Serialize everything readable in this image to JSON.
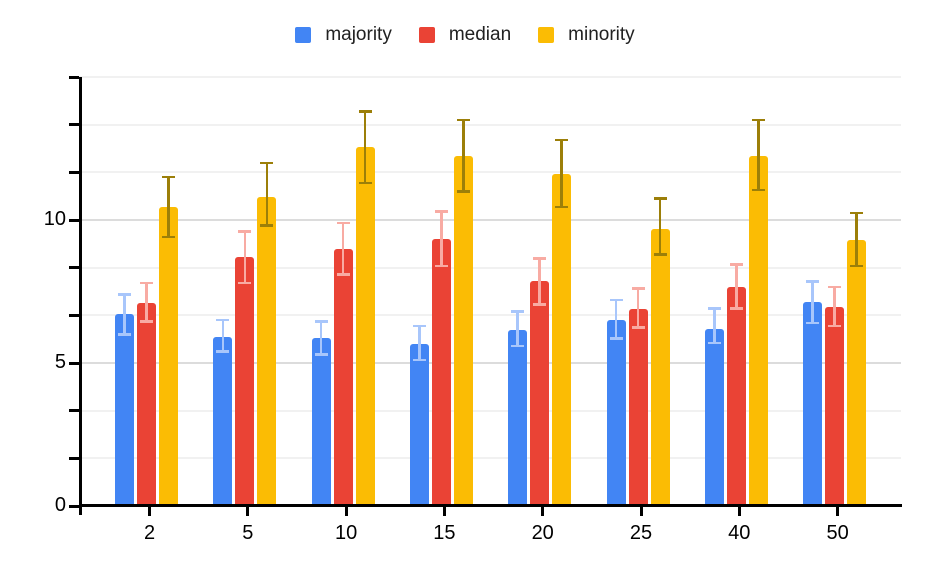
{
  "chart_data": {
    "type": "bar",
    "title": "",
    "xlabel": "",
    "ylabel": "",
    "categories": [
      "2",
      "5",
      "10",
      "15",
      "20",
      "25",
      "40",
      "50"
    ],
    "series": [
      {
        "name": "majority",
        "color": "#4285F4",
        "error_color": "#A8C6FB",
        "values": [
          6.7,
          5.9,
          5.88,
          5.67,
          6.15,
          6.5,
          6.2,
          7.15
        ],
        "error_low": [
          6.0,
          5.4,
          5.3,
          5.1,
          5.6,
          5.85,
          5.7,
          6.4
        ],
        "error_high": [
          7.4,
          6.5,
          6.45,
          6.3,
          6.8,
          7.2,
          6.9,
          7.85
        ]
      },
      {
        "name": "median",
        "color": "#EA4335",
        "error_color": "#F8ABA3",
        "values": [
          7.1,
          8.7,
          9.0,
          9.35,
          7.85,
          6.9,
          7.65,
          6.95
        ],
        "error_low": [
          6.45,
          7.8,
          8.1,
          8.4,
          7.05,
          6.25,
          6.9,
          6.3
        ],
        "error_high": [
          7.8,
          9.6,
          9.9,
          10.3,
          8.65,
          7.6,
          8.45,
          7.65
        ]
      },
      {
        "name": "minority",
        "color": "#FBBC04",
        "error_color": "#9C7F09",
        "values": [
          10.45,
          10.8,
          12.55,
          12.25,
          11.6,
          9.7,
          12.25,
          9.3
        ],
        "error_low": [
          9.4,
          9.8,
          11.3,
          11.0,
          10.45,
          8.8,
          11.05,
          8.4
        ],
        "error_high": [
          11.5,
          12.0,
          13.8,
          13.5,
          12.8,
          10.75,
          13.5,
          10.25
        ]
      }
    ],
    "ylim": [
      0,
      15
    ],
    "y_major_ticks": [
      0,
      5,
      10,
      15
    ],
    "y_minor_divisions_per_major": 3,
    "grid": true,
    "legend_position": "top",
    "colors": {
      "axis": "#000000",
      "major_gridline": "#dcdcdc",
      "minor_gridline": "#f1f1f1",
      "label_text": "#000000",
      "legend_text": "#212121",
      "background": "#ffffff"
    }
  }
}
